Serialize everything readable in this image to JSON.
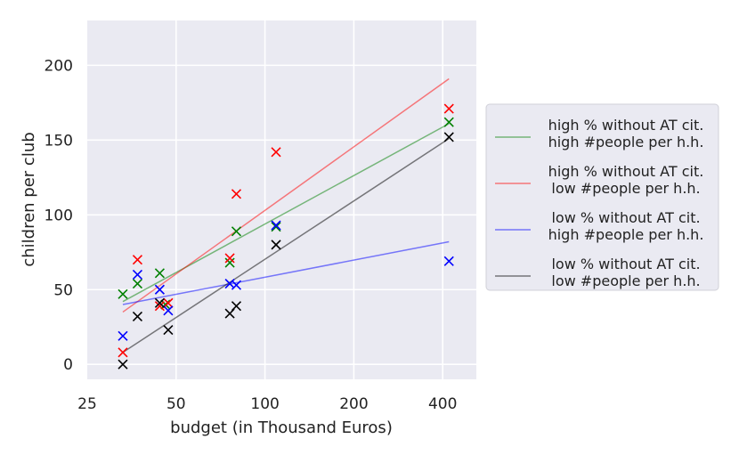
{
  "chart_data": {
    "type": "scatter",
    "xscale": "log",
    "xlabel": "budget (in Thousand Euros)",
    "ylabel": "children per club",
    "xlim": [
      25,
      520
    ],
    "ylim": [
      -10,
      230
    ],
    "xticks": [
      25,
      50,
      100,
      200,
      400
    ],
    "xtick_labels": [
      "25",
      "50",
      "100",
      "200",
      "400"
    ],
    "yticks": [
      0,
      50,
      100,
      150,
      200
    ],
    "ytick_labels": [
      "0",
      "50",
      "100",
      "150",
      "200"
    ],
    "grid": true,
    "legend_position": "right",
    "series": [
      {
        "name": "high % without AT cit.\nhigh #people per h.h.",
        "legend_lines": [
          "high % without AT cit.",
          "high #people per h.h."
        ],
        "color": "#008000",
        "marker": "x",
        "points": [
          [
            33,
            47
          ],
          [
            37,
            54
          ],
          [
            44,
            61
          ],
          [
            46,
            40
          ],
          [
            76,
            68
          ],
          [
            80,
            89
          ],
          [
            109,
            92
          ],
          [
            420,
            162
          ]
        ],
        "fit": [
          [
            33,
            42
          ],
          [
            420,
            161
          ]
        ]
      },
      {
        "name": "high % without AT cit.\nlow #people per h.h.",
        "legend_lines": [
          "high % without AT cit.",
          "low #people per h.h."
        ],
        "color": "#ff0000",
        "marker": "x",
        "points": [
          [
            33,
            8
          ],
          [
            37,
            70
          ],
          [
            44,
            39
          ],
          [
            47,
            41
          ],
          [
            76,
            71
          ],
          [
            80,
            114
          ],
          [
            109,
            142
          ],
          [
            420,
            171
          ]
        ],
        "fit": [
          [
            33,
            35
          ],
          [
            420,
            191
          ]
        ]
      },
      {
        "name": "low % without AT cit.\nhigh #people per h.h.",
        "legend_lines": [
          "low % without AT cit.",
          "high #people per h.h."
        ],
        "color": "#0000ff",
        "marker": "x",
        "points": [
          [
            33,
            19
          ],
          [
            37,
            60
          ],
          [
            44,
            50
          ],
          [
            47,
            36
          ],
          [
            76,
            54
          ],
          [
            80,
            53
          ],
          [
            109,
            93
          ],
          [
            420,
            69
          ]
        ],
        "fit": [
          [
            33,
            40
          ],
          [
            420,
            82
          ]
        ]
      },
      {
        "name": "low % without AT cit.\nlow #people per h.h.",
        "legend_lines": [
          "low % without AT cit.",
          "low #people per h.h."
        ],
        "color": "#000000",
        "marker": "x",
        "points": [
          [
            33,
            0
          ],
          [
            37,
            32
          ],
          [
            44,
            41
          ],
          [
            47,
            23
          ],
          [
            76,
            34
          ],
          [
            80,
            39
          ],
          [
            109,
            80
          ],
          [
            420,
            152
          ]
        ],
        "fit": [
          [
            33,
            8
          ],
          [
            420,
            151
          ]
        ]
      }
    ]
  }
}
